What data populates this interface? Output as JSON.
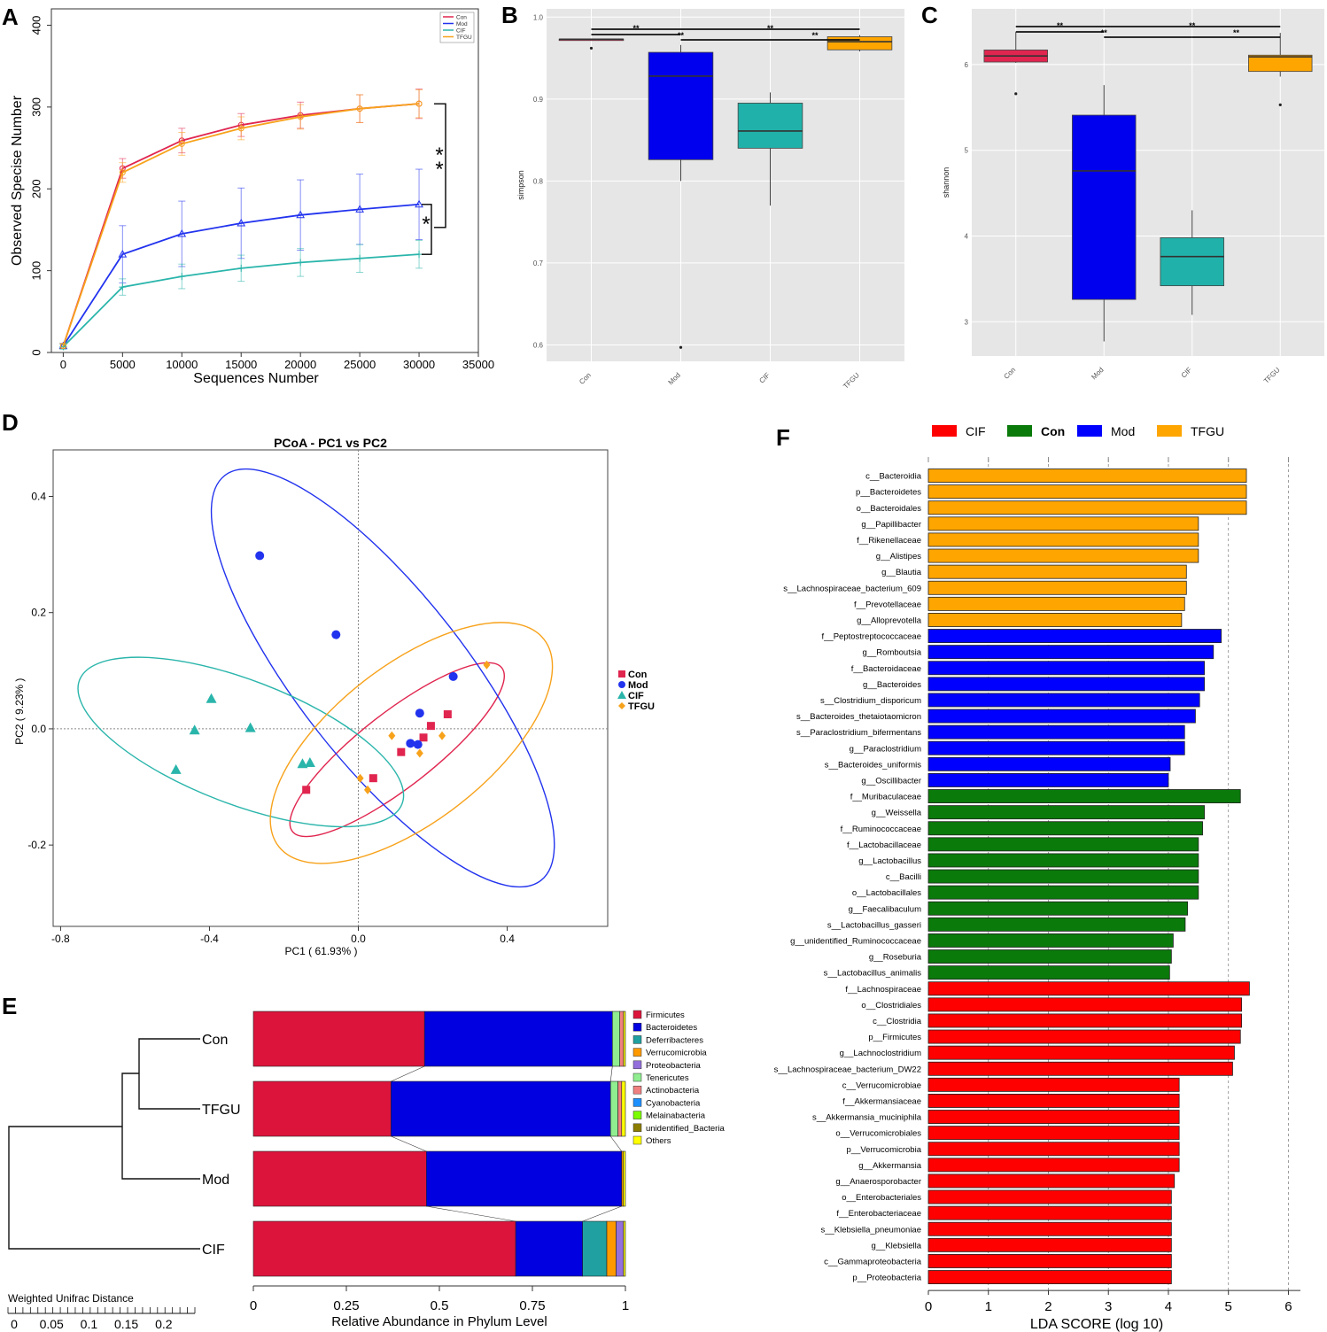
{
  "panel_labels": {
    "a": "A",
    "b": "B",
    "c": "C",
    "d": "D",
    "e": "E",
    "f": "F"
  },
  "colors": {
    "con": "#e0254f",
    "mod": "#2233ee",
    "cif": "#2ab5ab",
    "tfgu": "#f7a21b",
    "panel_bg": "#e6e6e6",
    "lefse_cif": "#ff0000",
    "lefse_con": "#0a7a0a",
    "lefse_mod": "#0000ff",
    "lefse_tfgu": "#ffa500"
  },
  "chart_data": [
    {
      "id": "A",
      "type": "line",
      "xlabel": "Sequences Number",
      "ylabel": "Observed Specise Number",
      "xlim": [
        -1000,
        35000
      ],
      "ylim": [
        0,
        420
      ],
      "xticks": [
        0,
        5000,
        10000,
        15000,
        20000,
        25000,
        30000,
        35000
      ],
      "yticks": [
        0,
        100,
        200,
        300,
        400
      ],
      "x": [
        0,
        5000,
        10000,
        15000,
        20000,
        25000,
        30000
      ],
      "series": [
        {
          "name": "Con",
          "values": [
            8,
            225,
            259,
            278,
            290,
            298,
            304
          ],
          "err": [
            3,
            12,
            15,
            14,
            16,
            17,
            18
          ]
        },
        {
          "name": "Mod",
          "values": [
            8,
            120,
            145,
            158,
            168,
            175,
            181
          ],
          "err": [
            3,
            35,
            40,
            43,
            43,
            43,
            43
          ]
        },
        {
          "name": "CIF",
          "values": [
            7,
            80,
            93,
            103,
            110,
            115,
            120
          ],
          "err": [
            3,
            10,
            15,
            16,
            17,
            17,
            17
          ]
        },
        {
          "name": "TFGU",
          "values": [
            8,
            220,
            255,
            274,
            288,
            298,
            304
          ],
          "err": [
            3,
            12,
            14,
            14,
            15,
            17,
            17
          ]
        }
      ],
      "legend": [
        "Con",
        "Mod",
        "CIF",
        "TFGU"
      ],
      "annotations": [
        {
          "text": "*",
          "between": [
            "TFGU",
            "Mod"
          ]
        },
        {
          "text": "*",
          "between": [
            "TFGU",
            "Mod"
          ]
        },
        {
          "text": "*",
          "between": [
            "Mod",
            "CIF"
          ]
        }
      ]
    },
    {
      "id": "B",
      "type": "box",
      "ylabel": "simpson",
      "ylim": [
        0.58,
        1.01
      ],
      "yticks": [
        0.6,
        0.7,
        0.8,
        0.9,
        1.0
      ],
      "ytick_labels": [
        "0.6",
        "0.7",
        "0.8",
        "0.9",
        "1.0"
      ],
      "categories": [
        "Con",
        "Mod",
        "CIF",
        "TFGU"
      ],
      "boxes": [
        {
          "q1": 0.973,
          "median": 0.973,
          "q3": 0.973,
          "wlo": 0.973,
          "whi": 0.973,
          "outliers": [
            0.962
          ]
        },
        {
          "q1": 0.826,
          "median": 0.928,
          "q3": 0.957,
          "wlo": 0.8,
          "whi": 0.966,
          "outliers": [
            0.597
          ]
        },
        {
          "q1": 0.84,
          "median": 0.861,
          "q3": 0.895,
          "wlo": 0.77,
          "whi": 0.908,
          "outliers": []
        },
        {
          "q1": 0.96,
          "median": 0.97,
          "q3": 0.976,
          "wlo": 0.958,
          "whi": 0.978,
          "outliers": []
        }
      ],
      "sig_label": "**"
    },
    {
      "id": "C",
      "type": "box",
      "ylabel": "shannon",
      "ylim": [
        2.6,
        6.65
      ],
      "yticks": [
        3,
        4,
        5,
        6
      ],
      "ytick_labels": [
        "3",
        "4",
        "5",
        "6"
      ],
      "categories": [
        "Con",
        "Mod",
        "CIF",
        "TFGU"
      ],
      "boxes": [
        {
          "q1": 6.03,
          "median": 6.1,
          "q3": 6.17,
          "wlo": 6.02,
          "whi": 6.38,
          "outliers": [
            5.66
          ]
        },
        {
          "q1": 3.26,
          "median": 4.76,
          "q3": 5.41,
          "wlo": 2.77,
          "whi": 5.76,
          "outliers": []
        },
        {
          "q1": 3.42,
          "median": 3.76,
          "q3": 3.98,
          "wlo": 3.08,
          "whi": 4.3,
          "outliers": []
        },
        {
          "q1": 5.92,
          "median": 6.09,
          "q3": 6.11,
          "wlo": 5.86,
          "whi": 6.37,
          "outliers": [
            5.53
          ]
        }
      ],
      "sig_label": "**"
    },
    {
      "id": "D",
      "type": "scatter",
      "title": "PCoA - PC1 vs PC2",
      "xlabel": "PC1 ( 61.93% )",
      "ylabel": "PC2 ( 9.23% )",
      "xlim": [
        -0.82,
        0.67
      ],
      "ylim": [
        -0.34,
        0.48
      ],
      "xticks": [
        -0.8,
        -0.4,
        0.0,
        0.4
      ],
      "xtick_labels": [
        "-0.8",
        "-0.4",
        "0.0",
        "0.4"
      ],
      "yticks": [
        -0.2,
        0.0,
        0.2,
        0.4
      ],
      "ytick_labels": [
        "-0.2",
        "0.0",
        "0.2",
        "0.4"
      ],
      "legend": [
        "Con",
        "Mod",
        "CIF",
        "TFGU"
      ],
      "series": [
        {
          "name": "Con",
          "points": [
            [
              0.24,
              0.025
            ],
            [
              0.195,
              0.005
            ],
            [
              0.175,
              -0.015
            ],
            [
              0.115,
              -0.04
            ],
            [
              0.04,
              -0.085
            ],
            [
              -0.14,
              -0.105
            ]
          ]
        },
        {
          "name": "Mod",
          "points": [
            [
              -0.265,
              0.298
            ],
            [
              -0.06,
              0.162
            ],
            [
              0.255,
              0.09
            ],
            [
              0.165,
              0.027
            ],
            [
              0.14,
              -0.025
            ],
            [
              0.16,
              -0.027
            ]
          ]
        },
        {
          "name": "CIF",
          "points": [
            [
              -0.395,
              0.052
            ],
            [
              -0.44,
              -0.002
            ],
            [
              -0.29,
              0.002
            ],
            [
              -0.49,
              -0.07
            ],
            [
              -0.15,
              -0.06
            ],
            [
              -0.13,
              -0.058
            ]
          ]
        },
        {
          "name": "TFGU",
          "points": [
            [
              0.345,
              0.11
            ],
            [
              0.09,
              -0.012
            ],
            [
              0.225,
              -0.012
            ],
            [
              0.165,
              -0.042
            ],
            [
              0.005,
              -0.085
            ],
            [
              0.025,
              -0.105
            ]
          ]
        }
      ]
    },
    {
      "id": "E",
      "type": "bar",
      "stacked": true,
      "horizontal": true,
      "xlabel": "Relative Abundance in Phylum Level",
      "xticks": [
        0,
        0.25,
        0.5,
        0.75,
        1
      ],
      "xtick_labels": [
        "0",
        "0.25",
        "0.5",
        "0.75",
        "1"
      ],
      "categories": [
        "Con",
        "TFGU",
        "Mod",
        "CIF"
      ],
      "dendrogram_label": "Weighted Unifrac Distance",
      "dendrogram_scale": [
        0,
        0.05,
        0.1,
        0.15,
        0.2
      ],
      "dendrogram_scale_labels": [
        "0",
        "0.05",
        "0.1",
        "0.15",
        "0.2"
      ],
      "series": [
        {
          "name": "Firmicutes",
          "color": "#dc143c",
          "values": [
            0.46,
            0.37,
            0.465,
            0.705
          ]
        },
        {
          "name": "Bacteroidetes",
          "color": "#0000e0",
          "values": [
            0.505,
            0.59,
            0.525,
            0.18
          ]
        },
        {
          "name": "Deferribacteres",
          "color": "#20a0a0",
          "values": [
            0.0,
            0.0,
            0.0,
            0.065
          ]
        },
        {
          "name": "Verrucomicrobia",
          "color": "#ff9900",
          "values": [
            0.0,
            0.0,
            0.004,
            0.025
          ]
        },
        {
          "name": "Proteobacteria",
          "color": "#9370db",
          "values": [
            0.0,
            0.0,
            0.0,
            0.02
          ]
        },
        {
          "name": "Tenericutes",
          "color": "#90ee90",
          "values": [
            0.02,
            0.02,
            0.0,
            0.0
          ]
        },
        {
          "name": "Actinobacteria",
          "color": "#f08080",
          "values": [
            0.01,
            0.01,
            0.0,
            0.0
          ]
        },
        {
          "name": "Cyanobacteria",
          "color": "#1e90ff",
          "values": [
            0.0,
            0.0,
            0.0,
            0.0
          ]
        },
        {
          "name": "Melainabacteria",
          "color": "#7cfc00",
          "values": [
            0.0,
            0.0,
            0.0,
            0.0
          ]
        },
        {
          "name": "unidentified_Bacteria",
          "color": "#8b7d00",
          "values": [
            0.0,
            0.0,
            0.0,
            0.0
          ]
        },
        {
          "name": "Others",
          "color": "#ffff00",
          "values": [
            0.005,
            0.01,
            0.006,
            0.005
          ]
        }
      ]
    },
    {
      "id": "F",
      "type": "bar",
      "horizontal": true,
      "xlabel": "LDA SCORE (log 10)",
      "xlim": [
        0,
        6.2
      ],
      "xticks": [
        0,
        1,
        2,
        3,
        4,
        5,
        6
      ],
      "xtick_labels": [
        "0",
        "1",
        "2",
        "3",
        "4",
        "5",
        "6"
      ],
      "legend": [
        "CIF",
        "Con",
        "Mod",
        "TFGU"
      ],
      "categories": [
        "c__Bacteroidia",
        "p__Bacteroidetes",
        "o__Bacteroidales",
        "g__Papillibacter",
        "f__Rikenellaceae",
        "g__Alistipes",
        "g__Blautia",
        "s__Lachnospiraceae_bacterium_609",
        "f__Prevotellaceae",
        "g__Alloprevotella",
        "f__Peptostreptococcaceae",
        "g__Romboutsia",
        "f__Bacteroidaceae",
        "g__Bacteroides",
        "s__Clostridium_disporicum",
        "s__Bacteroides_thetaiotaomicron",
        "s__Paraclostridium_bifermentans",
        "g__Paraclostridium",
        "s__Bacteroides_uniformis",
        "g__Oscillibacter",
        "f__Muribaculaceae",
        "g__Weissella",
        "f__Ruminococcaceae",
        "f__Lactobacillaceae",
        "g__Lactobacillus",
        "c__Bacilli",
        "o__Lactobacillales",
        "g__Faecalibaculum",
        "s__Lactobacillus_gasseri",
        "g__unidentified_Ruminococcaceae",
        "g__Roseburia",
        "s__Lactobacillus_animalis",
        "f__Lachnospiraceae",
        "o__Clostridiales",
        "c__Clostridia",
        "p__Firmicutes",
        "g__Lachnoclostridium",
        "s__Lachnospiraceae_bacterium_DW22",
        "c__Verrucomicrobiae",
        "f__Akkermansiaceae",
        "s__Akkermansia_muciniphila",
        "o__Verrucomicrobiales",
        "p__Verrucomicrobia",
        "g__Akkermansia",
        "g__Anaerosporobacter",
        "o__Enterobacteriales",
        "f__Enterobacteriaceae",
        "s__Klebsiella_pneumoniae",
        "g__Klebsiella",
        "c__Gammaproteobacteria",
        "p__Proteobacteria"
      ],
      "values": [
        5.3,
        5.3,
        5.3,
        4.5,
        4.5,
        4.5,
        4.3,
        4.3,
        4.27,
        4.22,
        4.88,
        4.75,
        4.6,
        4.6,
        4.52,
        4.45,
        4.27,
        4.27,
        4.03,
        4.0,
        5.2,
        4.6,
        4.57,
        4.5,
        4.5,
        4.5,
        4.5,
        4.32,
        4.28,
        4.08,
        4.05,
        4.02,
        5.35,
        5.22,
        5.22,
        5.2,
        5.1,
        5.07,
        4.18,
        4.18,
        4.18,
        4.18,
        4.18,
        4.18,
        4.1,
        4.05,
        4.05,
        4.05,
        4.05,
        4.05,
        4.05
      ],
      "groups": [
        "TFGU",
        "TFGU",
        "TFGU",
        "TFGU",
        "TFGU",
        "TFGU",
        "TFGU",
        "TFGU",
        "TFGU",
        "TFGU",
        "Mod",
        "Mod",
        "Mod",
        "Mod",
        "Mod",
        "Mod",
        "Mod",
        "Mod",
        "Mod",
        "Mod",
        "Con",
        "Con",
        "Con",
        "Con",
        "Con",
        "Con",
        "Con",
        "Con",
        "Con",
        "Con",
        "Con",
        "Con",
        "CIF",
        "CIF",
        "CIF",
        "CIF",
        "CIF",
        "CIF",
        "CIF",
        "CIF",
        "CIF",
        "CIF",
        "CIF",
        "CIF",
        "CIF",
        "CIF",
        "CIF",
        "CIF",
        "CIF",
        "CIF",
        "CIF"
      ]
    }
  ]
}
